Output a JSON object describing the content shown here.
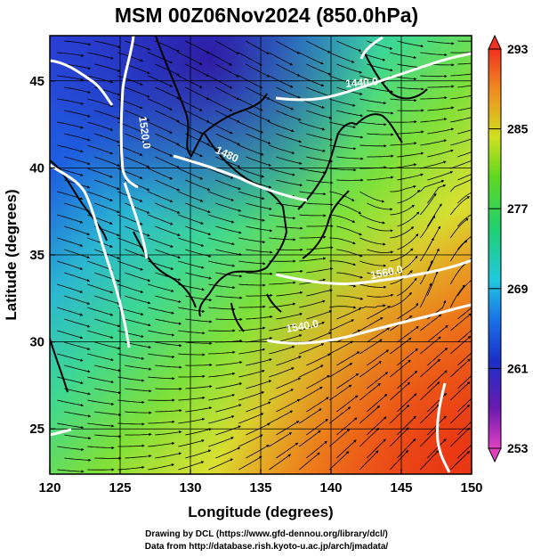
{
  "title": "MSM 00Z06Nov2024 (850.0hPa)",
  "footer": {
    "line1": "Drawing by DCL (https://www.gfd-dennou.org/library/dcl/)",
    "line2": "Data from http://database.rish.kyoto-u.ac.jp/arch/jmadata/"
  },
  "map": {
    "x_axis": {
      "label": "Longitude (degrees)",
      "range": [
        120,
        150
      ],
      "ticks": [
        120,
        125,
        130,
        135,
        140,
        145,
        150
      ]
    },
    "y_axis": {
      "label": "Latitude  (degrees)",
      "range": [
        22.4,
        47.6
      ],
      "ticks": [
        25,
        30,
        35,
        40,
        45
      ]
    },
    "colorbar": {
      "range": [
        253,
        293
      ],
      "ticks": [
        253,
        261,
        269,
        277,
        285,
        293
      ]
    },
    "contour_labels": [
      {
        "text": "1440.0",
        "lon": 142.2,
        "lat": 44.7,
        "rotate": -4
      },
      {
        "text": "1520.0",
        "lon": 126.5,
        "lat": 42.0,
        "rotate": 82
      },
      {
        "text": "1480",
        "lon": 132.5,
        "lat": 40.6,
        "rotate": 25
      },
      {
        "text": "1560.0",
        "lon": 144.0,
        "lat": 33.8,
        "rotate": -12
      },
      {
        "text": "1540.0",
        "lon": 138.0,
        "lat": 30.7,
        "rotate": -10
      }
    ]
  }
}
